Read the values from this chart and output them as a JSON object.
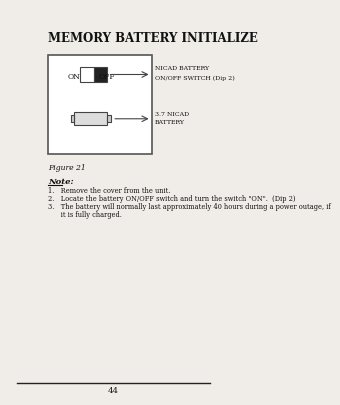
{
  "title": "MEMORY BATTERY INITIALIZE",
  "figure_label": "Figure 21",
  "note_title": "Note:",
  "notes": [
    "1.   Remove the cover from the unit.",
    "2.   Locate the battery ON/OFF switch and turn the switch \"ON\".  (Dip 2)",
    "3.   The battery will normally last approximately 40 hours during a power outage, if",
    "      it is fully charged."
  ],
  "page_number": "44",
  "bg_color": "#f0ede8",
  "box_color": "#ffffff",
  "box_edge_color": "#555555",
  "switch_black_color": "#222222",
  "battery_color": "#dddddd",
  "label1": "NICAD BATTERY",
  "label2": "ON/OFF SWITCH (Dip 2)",
  "label3": "3.7 NICAD",
  "label4": "BATTERY",
  "on_text": "ON",
  "off_text": "OFF"
}
